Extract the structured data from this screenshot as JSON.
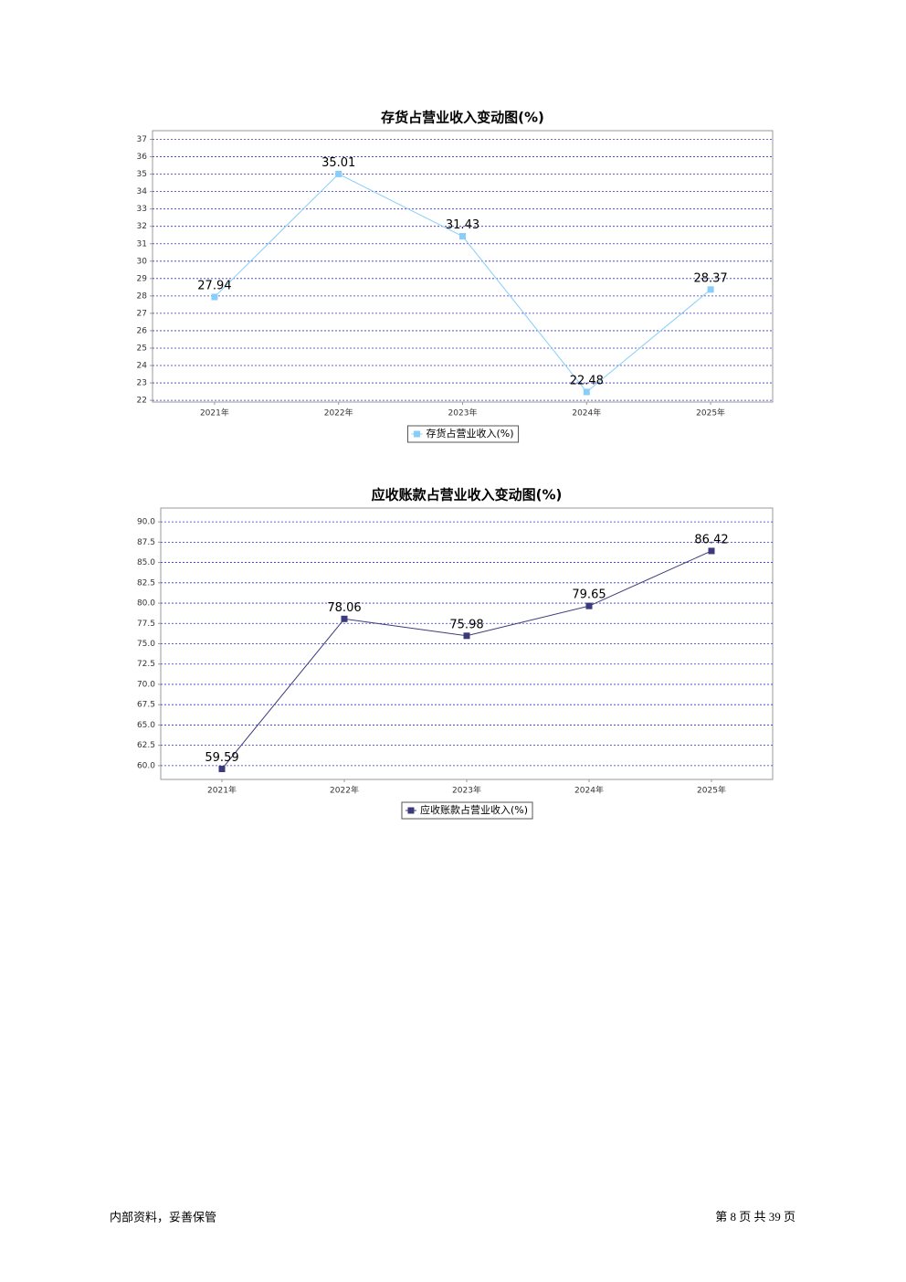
{
  "chart_data": [
    {
      "type": "line",
      "title": "存货占营业收入变动图(%)",
      "categories": [
        "2021年",
        "2022年",
        "2023年",
        "2024年",
        "2025年"
      ],
      "series": [
        {
          "name": "存货占营业收入(%)",
          "color": "#87cefa",
          "values": [
            27.94,
            35.01,
            31.43,
            22.48,
            28.37
          ]
        }
      ],
      "ylim": [
        21.9,
        37.5
      ],
      "yticks": [
        22,
        23,
        24,
        25,
        26,
        27,
        28,
        29,
        30,
        31,
        32,
        33,
        34,
        35,
        36,
        37
      ],
      "grid": true,
      "legend": "bottom"
    },
    {
      "type": "line",
      "title": "应收账款占营业收入变动图(%)",
      "categories": [
        "2021年",
        "2022年",
        "2023年",
        "2024年",
        "2025年"
      ],
      "series": [
        {
          "name": "应收账款占营业收入(%)",
          "color": "#3c3a7a",
          "values": [
            59.59,
            78.06,
            75.98,
            79.65,
            86.42
          ]
        }
      ],
      "ylim": [
        58.3,
        91.7
      ],
      "yticks": [
        {
          "value": 60,
          "label": "60.0"
        },
        {
          "value": 62.5,
          "label": "62.5"
        },
        {
          "value": 65,
          "label": "65.0"
        },
        {
          "value": 67.5,
          "label": "67.5"
        },
        {
          "value": 70,
          "label": "70.0"
        },
        {
          "value": 72.5,
          "label": "72.5"
        },
        {
          "value": 75,
          "label": "75.0"
        },
        {
          "value": 77.5,
          "label": "77.5"
        },
        {
          "value": 80,
          "label": "80.0"
        },
        {
          "value": 82.5,
          "label": "82.5"
        },
        {
          "value": 85,
          "label": "85.0"
        },
        {
          "value": 87.5,
          "label": "87.5"
        },
        {
          "value": 90,
          "label": "90.0"
        }
      ],
      "grid": true,
      "legend": "bottom"
    }
  ],
  "footer": {
    "note": "内部资料，妥善保管",
    "page": "第 8 页 共 39 页"
  }
}
